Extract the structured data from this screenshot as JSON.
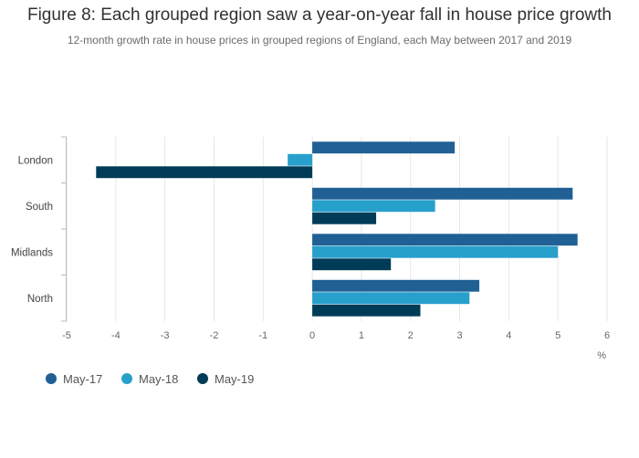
{
  "chart_data": {
    "type": "bar",
    "orientation": "horizontal",
    "title": "Figure 8: Each grouped region saw a year-on-year fall in house price growth",
    "subtitle": "12-month growth rate in house prices in grouped regions of England, each May between 2017 and 2019",
    "categories": [
      "London",
      "South",
      "Midlands",
      "North"
    ],
    "series": [
      {
        "name": "May-17",
        "color": "#206095",
        "values": [
          2.9,
          5.3,
          5.4,
          3.4
        ]
      },
      {
        "name": "May-18",
        "color": "#27a0cc",
        "values": [
          -0.5,
          2.5,
          5.0,
          3.2
        ]
      },
      {
        "name": "May-19",
        "color": "#003c57",
        "values": [
          -4.4,
          1.3,
          1.6,
          2.2
        ]
      }
    ],
    "xlim": [
      -5,
      6
    ],
    "xticks": [
      "-5",
      "-4",
      "-3",
      "-2",
      "-1",
      "0",
      "1",
      "2",
      "3",
      "4",
      "5",
      "6"
    ],
    "xlabel": "%",
    "ylabel": "",
    "grid": true,
    "legend": "bottom-left"
  }
}
